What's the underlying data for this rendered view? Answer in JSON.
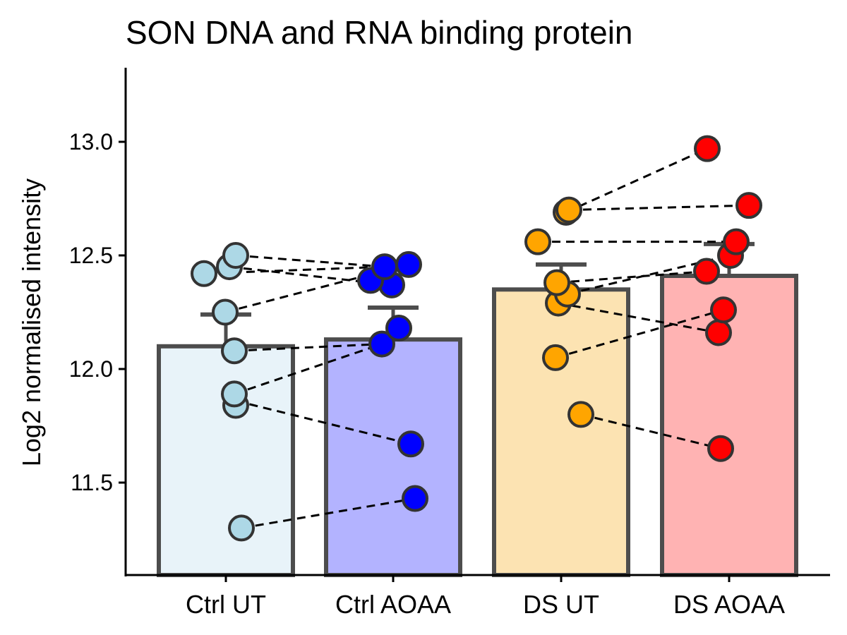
{
  "chart_data": {
    "type": "bar",
    "title": "SON DNA and RNA binding protein",
    "xlabel": "",
    "ylabel": "Log2 normalised intensity",
    "ylim": [
      11.1,
      13.33
    ],
    "yticks": [
      "11.5",
      "12.0",
      "12.5",
      "13.0"
    ],
    "ytick_values": [
      11.5,
      12.0,
      12.5,
      13.0
    ],
    "categories": [
      "Ctrl UT",
      "Ctrl AOAA",
      "DS UT",
      "DS AOAA"
    ],
    "values": [
      12.1,
      12.13,
      12.35,
      12.41
    ],
    "error_upper": [
      12.24,
      12.27,
      12.46,
      12.55
    ],
    "bar_fills": [
      "#e8f3f9",
      "#b3b3ff",
      "#fce3b2",
      "#ffb3b3"
    ],
    "point_colors": [
      "#add8e6",
      "#0000ff",
      "#ffa500",
      "#ff0000"
    ],
    "bar_outline": "#4d4d4d",
    "grid": false,
    "points": [
      [
        11.3,
        11.84,
        11.89,
        12.08,
        12.25,
        12.42,
        12.45,
        12.5
      ],
      [
        11.43,
        11.67,
        12.11,
        12.18,
        12.37,
        12.39,
        12.45,
        12.46
      ],
      [
        11.8,
        12.05,
        12.29,
        12.33,
        12.38,
        12.56,
        12.69,
        12.7
      ],
      [
        11.65,
        12.16,
        12.26,
        12.43,
        12.5,
        12.56,
        12.72,
        12.97
      ]
    ],
    "pairs": [
      {
        "from": [
          0,
          11.3
        ],
        "to": [
          1,
          11.43
        ]
      },
      {
        "from": [
          0,
          11.86
        ],
        "to": [
          1,
          11.67
        ]
      },
      {
        "from": [
          0,
          11.89
        ],
        "to": [
          1,
          12.11
        ]
      },
      {
        "from": [
          0,
          12.08
        ],
        "to": [
          1,
          12.11
        ]
      },
      {
        "from": [
          0,
          12.25
        ],
        "to": [
          1,
          12.46
        ]
      },
      {
        "from": [
          0,
          12.42
        ],
        "to": [
          1,
          12.45
        ]
      },
      {
        "from": [
          0,
          12.45
        ],
        "to": [
          1,
          12.37
        ]
      },
      {
        "from": [
          0,
          12.5
        ],
        "to": [
          1,
          12.45
        ]
      },
      {
        "from": [
          2,
          12.69
        ],
        "to": [
          3,
          12.97
        ]
      },
      {
        "from": [
          2,
          12.7
        ],
        "to": [
          3,
          12.72
        ]
      },
      {
        "from": [
          2,
          12.56
        ],
        "to": [
          3,
          12.56
        ]
      },
      {
        "from": [
          2,
          12.38
        ],
        "to": [
          3,
          12.43
        ]
      },
      {
        "from": [
          2,
          12.33
        ],
        "to": [
          3,
          12.5
        ]
      },
      {
        "from": [
          2,
          12.29
        ],
        "to": [
          3,
          12.16
        ]
      },
      {
        "from": [
          2,
          12.05
        ],
        "to": [
          3,
          12.26
        ]
      },
      {
        "from": [
          2,
          11.8
        ],
        "to": [
          3,
          11.65
        ]
      }
    ]
  }
}
